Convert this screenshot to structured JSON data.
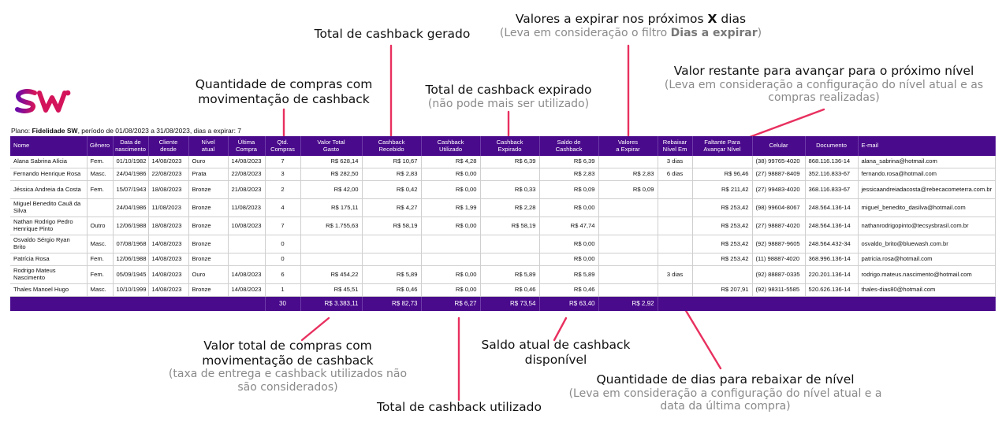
{
  "annotations": {
    "total_gerado": {
      "main": "Total de cashback gerado"
    },
    "expirar": {
      "main_prefix": "Valores a expirar nos próximos ",
      "main_bold": "X",
      "main_suffix": " dias",
      "sub_prefix": "(Leva em consideração o filtro ",
      "sub_bold": "Dias a expirar",
      "sub_suffix": ")"
    },
    "restante": {
      "main": "Valor restante para avançar para o próximo nível",
      "sub1": "(Leva em consideração a configuração do nível atual e as",
      "sub2": "compras realizadas)"
    },
    "qtd_compras": {
      "main1": "Quantidade de compras com",
      "main2": "movimentação de cashback"
    },
    "expirado": {
      "main": "Total de cashback expirado",
      "sub": "(não pode mais ser utilizado)"
    },
    "valor_total": {
      "main1": "Valor total de compras com",
      "main2": "movimentação de cashback",
      "sub1": "(taxa de entrega e cashback utilizados não",
      "sub2": "são considerados)"
    },
    "saldo": {
      "main1": "Saldo atual de cashback",
      "main2": "disponível"
    },
    "utilizado": {
      "main": "Total de cashback utilizado"
    },
    "rebaixar": {
      "main": "Quantidade de dias para rebaixar de nível",
      "sub1": "(Leva em consideração a configuração do nível atual e a",
      "sub2": "data da última compra)"
    }
  },
  "plan": {
    "prefix": "Plano: ",
    "name": "Fidelidade SW",
    "period": ", período de 01/08/2023 a 31/08/2023, dias a expirar: 7"
  },
  "logo": {
    "text": "SW",
    "color": "#d4145a",
    "accent": "#6b0aa8"
  },
  "colors": {
    "header": "#4a0a8c"
  },
  "table": {
    "headers": [
      {
        "l1": "Nome"
      },
      {
        "l1": "Gênero"
      },
      {
        "l1": "Data de",
        "l2": "nascimento"
      },
      {
        "l1": "Cliente",
        "l2": "desde"
      },
      {
        "l1": "Nível",
        "l2": "atual"
      },
      {
        "l1": "Última",
        "l2": "Compra"
      },
      {
        "l1": "Qtd.",
        "l2": "Compras"
      },
      {
        "l1": "Valor Total",
        "l2": "Gasto"
      },
      {
        "l1": "Cashback",
        "l2": "Recebido"
      },
      {
        "l1": "Cashback",
        "l2": "Utilizado"
      },
      {
        "l1": "Cashback",
        "l2": "Expirado"
      },
      {
        "l1": "Saldo de",
        "l2": "Cashback"
      },
      {
        "l1": "Valores",
        "l2": "a Expirar"
      },
      {
        "l1": "Rebaixar",
        "l2": "Nível Em"
      },
      {
        "l1": "Faltante Para",
        "l2": "Avançar Nível"
      },
      {
        "l1": "Celular"
      },
      {
        "l1": "Documento"
      },
      {
        "l1": "E-mail"
      }
    ],
    "rows": [
      {
        "tall": false,
        "cells": [
          "Alana Sabrina Alícia",
          "Fem.",
          "01/10/1982",
          "14/08/2023",
          "Ouro",
          "14/08/2023",
          "7",
          "R$ 628,14",
          "R$ 10,67",
          "R$ 4,28",
          "R$ 6,39",
          "R$ 6,39",
          "",
          "3 dias",
          "",
          "(38) 99765-4020",
          "868.116.136-14",
          "alana_sabrina@hotmail.com"
        ]
      },
      {
        "tall": false,
        "cells": [
          "Fernando Henrique Rosa",
          "Masc.",
          "24/04/1986",
          "22/08/2023",
          "Prata",
          "22/08/2023",
          "3",
          "R$ 282,50",
          "R$ 2,83",
          "R$ 0,00",
          "",
          "R$ 2,83",
          "R$ 2,83",
          "6 dias",
          "R$ 96,46",
          "(27) 98887-8409",
          "352.116.833-67",
          "fernando.rosa@hotmail.com"
        ]
      },
      {
        "tall": true,
        "cells": [
          "Jéssica Andreia da Costa",
          "Fem.",
          "15/07/1943",
          "18/08/2023",
          "Bronze",
          "21/08/2023",
          "2",
          "R$ 42,00",
          "R$ 0,42",
          "R$ 0,00",
          "R$ 0,33",
          "R$ 0,09",
          "R$ 0,09",
          "",
          "R$ 211,42",
          "(27) 99483-4020",
          "368.116.833-67",
          "jessicaandreiadacosta@rebecacometerra.com.br"
        ]
      },
      {
        "tall": true,
        "cells": [
          "Miguel Benedito Cauã da Silva",
          "",
          "24/04/1986",
          "11/08/2023",
          "Bronze",
          "11/08/2023",
          "4",
          "R$ 175,11",
          "R$ 4,27",
          "R$ 1,99",
          "R$ 2,28",
          "R$ 0,00",
          "",
          "",
          "R$ 253,42",
          "(98) 99604-8067",
          "248.564.136-14",
          "miguel_benedito_dasilva@hotmail.com"
        ]
      },
      {
        "tall": true,
        "cells": [
          "Nathan Rodrigo Pedro Henrique Pinto",
          "Outro",
          "12/06/1988",
          "18/08/2023",
          "Bronze",
          "10/08/2023",
          "7",
          "R$ 1.755,63",
          "R$ 58,19",
          "R$ 0,00",
          "R$ 58,19",
          "R$ 47,74",
          "",
          "",
          "R$ 253,42",
          "(27) 98887-4020",
          "248.564.136-14",
          "nathanrodrigopinto@tecsysbrasil.com.br"
        ]
      },
      {
        "tall": true,
        "cells": [
          "Osvaldo Sérgio Ryan Brito",
          "Masc.",
          "07/08/1968",
          "14/08/2023",
          "Bronze",
          "",
          "0",
          "",
          "",
          "",
          "",
          "R$ 0,00",
          "",
          "",
          "R$ 253,42",
          "(92) 98887-9605",
          "248.564.432-34",
          "osvaldo_brito@bluewash.com.br"
        ]
      },
      {
        "tall": false,
        "cells": [
          "Patrícia Rosa",
          "Fem.",
          "12/06/1988",
          "14/08/2023",
          "Bronze",
          "",
          "0",
          "",
          "",
          "",
          "",
          "R$ 0,00",
          "",
          "",
          "R$ 253,42",
          "(11) 98887-4020",
          "368.996.136-14",
          "patricia.rosa@hotmail.com"
        ]
      },
      {
        "tall": true,
        "cells": [
          "Rodrigo Mateus Nascimento",
          "Fem.",
          "05/09/1945",
          "14/08/2023",
          "Ouro",
          "14/08/2023",
          "6",
          "R$ 454,22",
          "R$ 5,89",
          "R$ 0,00",
          "R$ 5,89",
          "R$ 5,89",
          "",
          "3 dias",
          "",
          "(92) 88887-0335",
          "220.201.136-14",
          "rodrigo.mateus.nascimento@hotmail.com"
        ]
      },
      {
        "tall": false,
        "cells": [
          "Thales Manoel Hugo",
          "Masc.",
          "10/10/1999",
          "14/08/2023",
          "Bronze",
          "14/08/2023",
          "1",
          "R$ 45,51",
          "R$ 0,46",
          "R$ 0,00",
          "R$ 0,46",
          "R$ 0,46",
          "",
          "",
          "R$ 207,91",
          "(92) 98311-5585",
          "520.626.136-14",
          "thales-dias80@hotmail.com"
        ]
      }
    ],
    "totals": {
      "qtd": "30",
      "valor": "R$ 3.383,11",
      "recebido": "R$ 82,73",
      "utilizado": "R$ 6,27",
      "expirado": "R$ 73,54",
      "saldo": "R$ 63,40",
      "expirar": "R$ 2,92"
    }
  }
}
